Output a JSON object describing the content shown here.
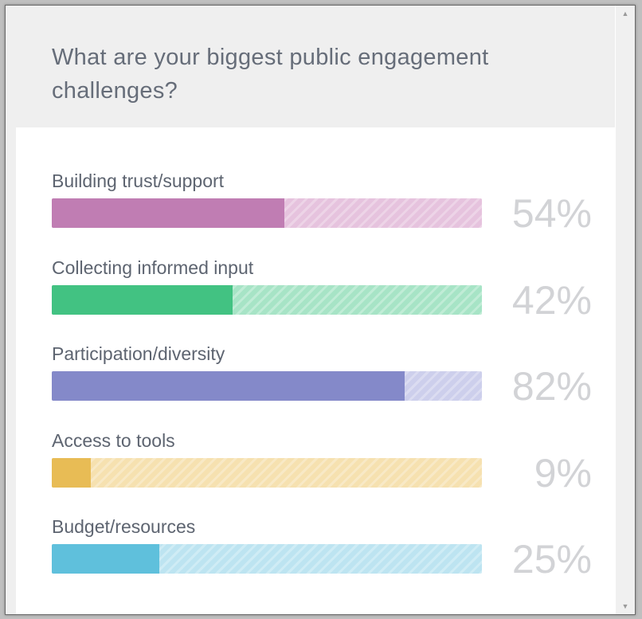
{
  "survey": {
    "question": "What are your biggest public engagement challenges?",
    "results": [
      {
        "label": "Building trust/support",
        "percent_text": "54%",
        "value": 54,
        "color": "#c07db3",
        "track": "#e6c3de"
      },
      {
        "label": "Collecting informed input",
        "percent_text": "42%",
        "value": 42,
        "color": "#42c282",
        "track": "#a7e4c6"
      },
      {
        "label": "Participation/diversity",
        "percent_text": "82%",
        "value": 82,
        "color": "#8489c9",
        "track": "#cdcfec"
      },
      {
        "label": "Access to tools",
        "percent_text": "9%",
        "value": 9,
        "color": "#e8bc55",
        "track": "#f6e1b0"
      },
      {
        "label": "Budget/resources",
        "percent_text": "25%",
        "value": 25,
        "color": "#5fc0dc",
        "track": "#bde4f1"
      }
    ]
  },
  "scrollbar": {
    "up_icon": "triangle-up-icon",
    "down_icon": "triangle-down-icon"
  }
}
